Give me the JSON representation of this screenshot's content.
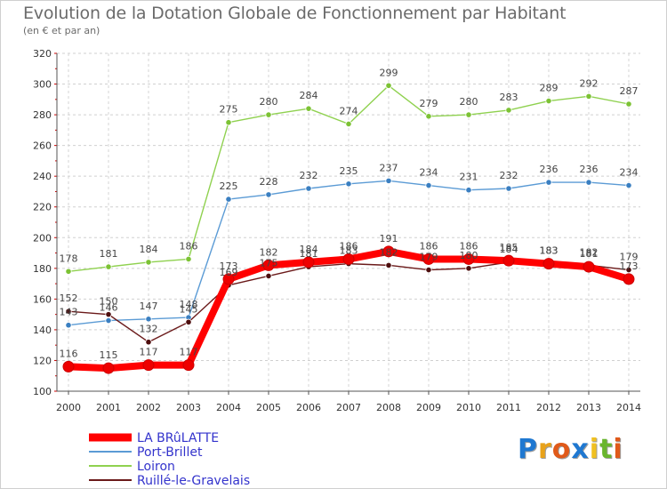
{
  "chart_data": {
    "type": "line",
    "title": "Evolution de la Dotation Globale de Fonctionnement par Habitant",
    "subtitle": "(en € et par an)",
    "xlabel": "",
    "ylabel": "",
    "x": [
      "2000",
      "2001",
      "2002",
      "2003",
      "2004",
      "2005",
      "2006",
      "2007",
      "2008",
      "2009",
      "2010",
      "2011",
      "2012",
      "2013",
      "2014"
    ],
    "ylim": [
      100,
      320
    ],
    "yticks": [
      100,
      120,
      140,
      160,
      180,
      200,
      220,
      240,
      260,
      280,
      300,
      320
    ],
    "grid": "dashed horizontal",
    "legend_position": "bottom-left",
    "series": [
      {
        "name": "Loiron",
        "color": "#8fd14f",
        "marker": "#7cc234",
        "values": [
          178,
          181,
          184,
          186,
          275,
          280,
          284,
          274,
          299,
          279,
          280,
          283,
          289,
          292,
          287
        ]
      },
      {
        "name": "Port-Brillet",
        "color": "#5b9bd5",
        "marker": "#3a7fc1",
        "values": [
          143,
          146,
          147,
          148,
          225,
          228,
          232,
          235,
          237,
          234,
          231,
          232,
          236,
          236,
          234
        ]
      },
      {
        "name": "Ruillé-le-Gravelais",
        "color": "#6b1a1a",
        "marker": "#4d0d0d",
        "values": [
          152,
          150,
          132,
          145,
          169,
          175,
          181,
          183,
          182,
          179,
          180,
          184,
          183,
          182,
          179
        ]
      },
      {
        "name": "LA BRûLATTE",
        "color": "#ff0000",
        "marker": "#ee0000",
        "emphasis": true,
        "values": [
          116,
          115,
          117,
          117,
          173,
          182,
          184,
          186,
          191,
          186,
          186,
          185,
          183,
          181,
          173
        ]
      }
    ]
  },
  "brand": {
    "letters": [
      "P",
      "r",
      "o",
      "x",
      "i",
      "t",
      "i"
    ],
    "colors": [
      "#1f78d1",
      "#e8a21a",
      "#e05a1a",
      "#1f78d1",
      "#f0c020",
      "#69b52e",
      "#e05a1a"
    ]
  }
}
